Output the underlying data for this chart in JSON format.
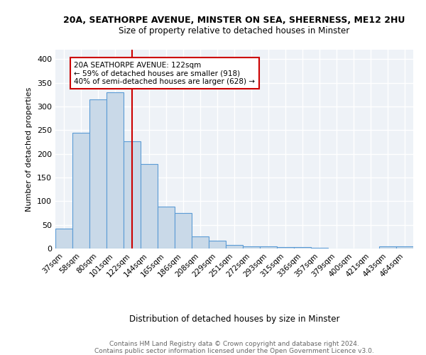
{
  "title1": "20A, SEATHORPE AVENUE, MINSTER ON SEA, SHEERNESS, ME12 2HU",
  "title2": "Size of property relative to detached houses in Minster",
  "xlabel": "Distribution of detached houses by size in Minster",
  "ylabel": "Number of detached properties",
  "categories": [
    "37sqm",
    "58sqm",
    "80sqm",
    "101sqm",
    "122sqm",
    "144sqm",
    "165sqm",
    "186sqm",
    "208sqm",
    "229sqm",
    "251sqm",
    "272sqm",
    "293sqm",
    "315sqm",
    "336sqm",
    "357sqm",
    "379sqm",
    "400sqm",
    "421sqm",
    "443sqm",
    "464sqm"
  ],
  "values": [
    42,
    245,
    315,
    330,
    227,
    179,
    89,
    75,
    26,
    17,
    8,
    5,
    5,
    3,
    3,
    1,
    0,
    0,
    0,
    4,
    4
  ],
  "bar_color": "#c9d9e8",
  "bar_edge_color": "#5b9bd5",
  "vline_x": 4,
  "vline_color": "#cc0000",
  "annotation_text": "20A SEATHORPE AVENUE: 122sqm\n← 59% of detached houses are smaller (918)\n40% of semi-detached houses are larger (628) →",
  "annotation_box_color": "white",
  "annotation_box_edge": "#cc0000",
  "footer_text": "Contains HM Land Registry data © Crown copyright and database right 2024.\nContains public sector information licensed under the Open Government Licence v3.0.",
  "ylim": [
    0,
    420
  ],
  "bg_color": "#eef2f7",
  "grid_color": "white"
}
